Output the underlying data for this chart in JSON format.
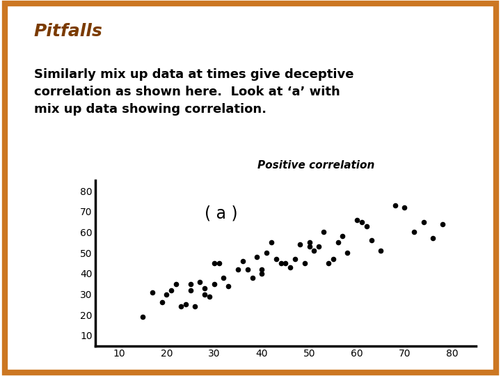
{
  "title": "Pitfalls",
  "body_text": "Similarly mix up data at times give deceptive\ncorrelation as shown here.  Look at ‘a’ with\nmix up data showing correlation.",
  "chart_title": "Positive correlation",
  "chart_label": "( a )",
  "background_color": "#ffffff",
  "border_color": "#cc7722",
  "title_color": "#7B3B00",
  "body_color": "#000000",
  "scatter_color": "#000000",
  "xlim": [
    5,
    85
  ],
  "ylim": [
    5,
    85
  ],
  "xticks": [
    10,
    20,
    30,
    40,
    50,
    60,
    70,
    80
  ],
  "yticks": [
    10,
    20,
    30,
    40,
    50,
    60,
    70,
    80
  ],
  "scatter_x": [
    15,
    17,
    19,
    20,
    21,
    22,
    23,
    24,
    25,
    25,
    26,
    27,
    28,
    28,
    29,
    30,
    30,
    31,
    32,
    33,
    35,
    36,
    37,
    38,
    39,
    40,
    40,
    41,
    42,
    43,
    44,
    45,
    46,
    47,
    48,
    49,
    50,
    50,
    51,
    52,
    53,
    54,
    55,
    56,
    57,
    58,
    60,
    61,
    62,
    63,
    65,
    68,
    70,
    72,
    74,
    76,
    78
  ],
  "scatter_y": [
    19,
    31,
    26,
    30,
    32,
    35,
    24,
    25,
    35,
    32,
    24,
    36,
    30,
    33,
    29,
    35,
    45,
    45,
    38,
    34,
    42,
    46,
    42,
    38,
    48,
    40,
    42,
    50,
    55,
    47,
    45,
    45,
    43,
    47,
    54,
    45,
    55,
    53,
    51,
    53,
    60,
    45,
    47,
    55,
    58,
    50,
    66,
    65,
    63,
    56,
    51,
    73,
    72,
    60,
    65,
    57,
    64
  ]
}
